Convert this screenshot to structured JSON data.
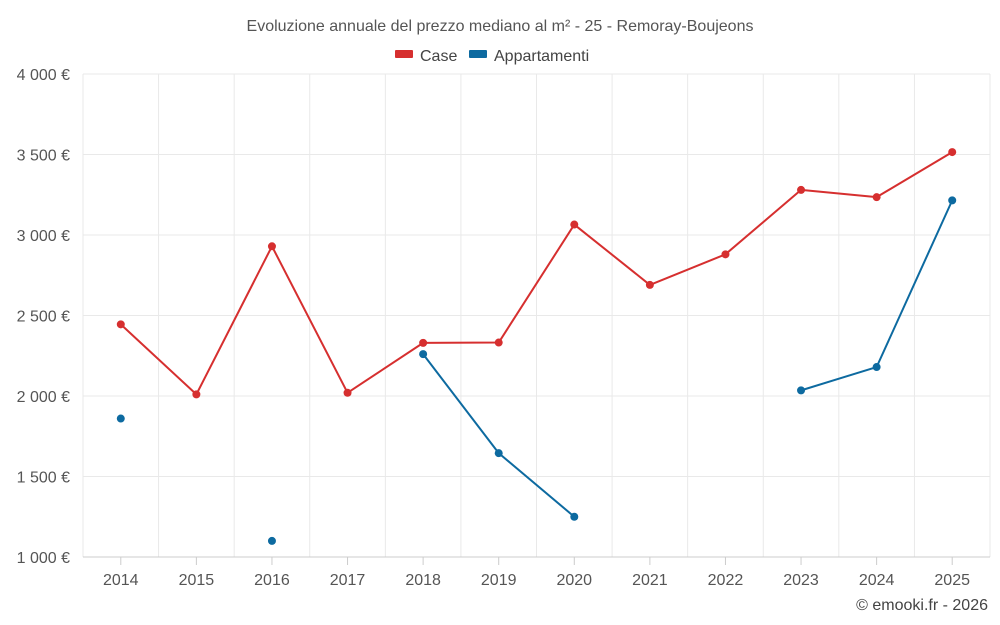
{
  "chart_data": {
    "type": "line",
    "title": "Evoluzione annuale del prezzo mediano al m² - 25 - Remoray-Boujeons",
    "x": [
      "2014",
      "2015",
      "2016",
      "2017",
      "2018",
      "2019",
      "2020",
      "2021",
      "2022",
      "2023",
      "2024",
      "2025"
    ],
    "ylim": [
      1000,
      4000
    ],
    "yticks": [
      1000,
      1500,
      2000,
      2500,
      3000,
      3500,
      4000
    ],
    "ytick_labels": [
      "1 000 €",
      "1 500 €",
      "2 000 €",
      "2 500 €",
      "3 000 €",
      "3 500 €",
      "4 000 €"
    ],
    "legend_position": "top-center",
    "series": [
      {
        "name": "Case",
        "color": "#d62f2f",
        "values": [
          2445,
          2010,
          2930,
          2020,
          2330,
          2332,
          3065,
          2690,
          2880,
          3280,
          3235,
          3515
        ]
      },
      {
        "name": "Appartamenti",
        "color": "#0d6aa0",
        "values": [
          1860,
          null,
          1100,
          null,
          2260,
          1645,
          1250,
          null,
          null,
          2035,
          2180,
          3215
        ]
      }
    ],
    "credit": "© emooki.fr - 2026"
  }
}
